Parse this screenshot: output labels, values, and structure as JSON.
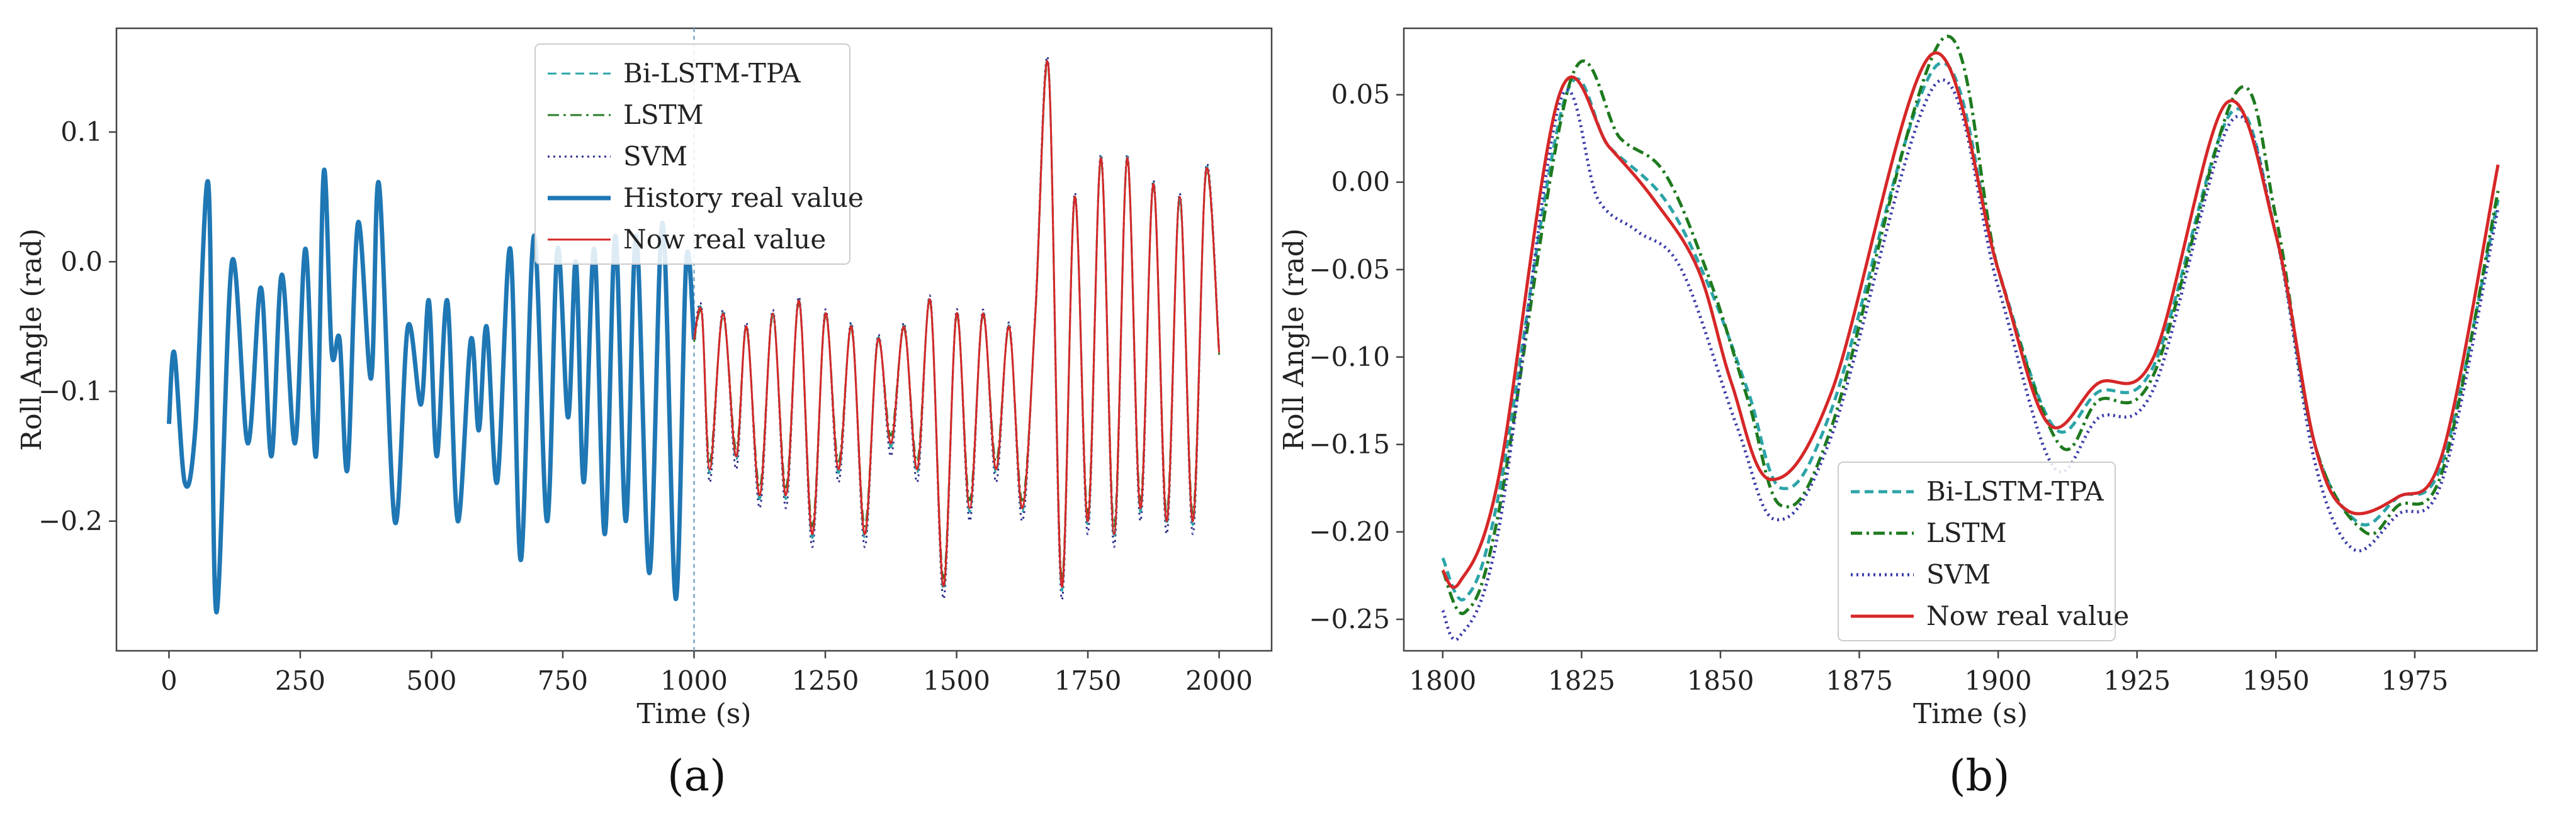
{
  "figure_labels": {
    "a": "(a)",
    "b": "(b)"
  },
  "chart_data": [
    {
      "id": "a",
      "type": "line",
      "xlabel": "Time (s)",
      "ylabel": "Roll Angle (rad)",
      "xlim": [
        -100,
        2100
      ],
      "ylim": [
        -0.3,
        0.18
      ],
      "xticks": [
        0,
        250,
        500,
        750,
        1000,
        1250,
        1500,
        1750,
        2000
      ],
      "yticks": [
        0.1,
        0.0,
        -0.1,
        -0.2
      ],
      "ytick_labels": [
        "0.1",
        "0.0",
        "−0.1",
        "−0.2"
      ],
      "vertical_line_x": 1000,
      "legend": {
        "position": "top-center",
        "entries": [
          "Bi-LSTM-TPA",
          "LSTM",
          "SVM",
          "History real value",
          "Now real value"
        ]
      },
      "grid": false,
      "series": [
        {
          "name": "History real value",
          "color": "#1f77b4",
          "style": "solid",
          "width": 7,
          "points": [
            [
              0,
              -0.125
            ],
            [
              10,
              -0.07
            ],
            [
              30,
              -0.17
            ],
            [
              50,
              -0.13
            ],
            [
              75,
              0.06
            ],
            [
              90,
              -0.27
            ],
            [
              120,
              0.0
            ],
            [
              150,
              -0.14
            ],
            [
              175,
              -0.02
            ],
            [
              195,
              -0.15
            ],
            [
              215,
              -0.01
            ],
            [
              240,
              -0.14
            ],
            [
              260,
              0.01
            ],
            [
              280,
              -0.15
            ],
            [
              295,
              0.07
            ],
            [
              310,
              -0.07
            ],
            [
              325,
              -0.06
            ],
            [
              340,
              -0.16
            ],
            [
              360,
              0.03
            ],
            [
              385,
              -0.09
            ],
            [
              400,
              0.06
            ],
            [
              430,
              -0.2
            ],
            [
              455,
              -0.05
            ],
            [
              480,
              -0.11
            ],
            [
              495,
              -0.03
            ],
            [
              510,
              -0.15
            ],
            [
              530,
              -0.03
            ],
            [
              550,
              -0.2
            ],
            [
              575,
              -0.06
            ],
            [
              590,
              -0.13
            ],
            [
              605,
              -0.05
            ],
            [
              625,
              -0.17
            ],
            [
              650,
              0.01
            ],
            [
              670,
              -0.23
            ],
            [
              695,
              0.02
            ],
            [
              720,
              -0.2
            ],
            [
              740,
              0.01
            ],
            [
              760,
              -0.12
            ],
            [
              775,
              0.0
            ],
            [
              790,
              -0.17
            ],
            [
              810,
              0.01
            ],
            [
              830,
              -0.21
            ],
            [
              850,
              0.02
            ],
            [
              870,
              -0.2
            ],
            [
              890,
              0.02
            ],
            [
              915,
              -0.24
            ],
            [
              940,
              0.03
            ],
            [
              965,
              -0.26
            ],
            [
              985,
              0.0
            ],
            [
              1000,
              -0.06
            ]
          ]
        },
        {
          "name": "Now real value",
          "color": "#d62728",
          "style": "solid",
          "width": 3,
          "points": [
            [
              1000,
              -0.06
            ],
            [
              1015,
              -0.04
            ],
            [
              1030,
              -0.16
            ],
            [
              1055,
              -0.04
            ],
            [
              1080,
              -0.15
            ],
            [
              1100,
              -0.05
            ],
            [
              1125,
              -0.18
            ],
            [
              1150,
              -0.04
            ],
            [
              1175,
              -0.18
            ],
            [
              1200,
              -0.03
            ],
            [
              1225,
              -0.21
            ],
            [
              1250,
              -0.04
            ],
            [
              1275,
              -0.16
            ],
            [
              1300,
              -0.05
            ],
            [
              1325,
              -0.21
            ],
            [
              1350,
              -0.06
            ],
            [
              1375,
              -0.14
            ],
            [
              1400,
              -0.05
            ],
            [
              1425,
              -0.16
            ],
            [
              1450,
              -0.03
            ],
            [
              1475,
              -0.25
            ],
            [
              1500,
              -0.04
            ],
            [
              1525,
              -0.19
            ],
            [
              1550,
              -0.04
            ],
            [
              1575,
              -0.16
            ],
            [
              1600,
              -0.05
            ],
            [
              1625,
              -0.19
            ],
            [
              1650,
              -0.04
            ],
            [
              1675,
              0.15
            ],
            [
              1700,
              -0.25
            ],
            [
              1725,
              0.05
            ],
            [
              1750,
              -0.2
            ],
            [
              1775,
              0.08
            ],
            [
              1800,
              -0.21
            ],
            [
              1825,
              0.08
            ],
            [
              1850,
              -0.19
            ],
            [
              1875,
              0.06
            ],
            [
              1900,
              -0.2
            ],
            [
              1925,
              0.05
            ],
            [
              1950,
              -0.2
            ],
            [
              1975,
              0.07
            ],
            [
              2000,
              -0.07
            ]
          ]
        },
        {
          "name": "Bi-LSTM-TPA",
          "color": "#2ca4a8",
          "style": "dashed",
          "width": 3,
          "offset": -0.003
        },
        {
          "name": "LSTM",
          "color": "#2a7d2a",
          "style": "dashdot",
          "width": 3,
          "offset": 0.006
        },
        {
          "name": "SVM",
          "color": "#2b2d8a",
          "style": "dotted",
          "width": 3,
          "offset": -0.01
        }
      ]
    },
    {
      "id": "b",
      "type": "line",
      "xlabel": "Time (s)",
      "ylabel": "Roll Angle (rad)",
      "xlim": [
        1793,
        1997
      ],
      "ylim": [
        -0.268,
        0.088
      ],
      "xticks": [
        1800,
        1825,
        1850,
        1875,
        1900,
        1925,
        1950,
        1975
      ],
      "yticks": [
        0.05,
        0.0,
        -0.05,
        -0.1,
        -0.15,
        -0.2,
        -0.25
      ],
      "ytick_labels": [
        "0.05",
        "0.00",
        "−0.05",
        "−0.10",
        "−0.15",
        "−0.20",
        "−0.25"
      ],
      "legend": {
        "position": "lower-center",
        "entries": [
          "Bi-LSTM-TPA",
          "LSTM",
          "SVM",
          "Now real value"
        ]
      },
      "grid": false,
      "series": [
        {
          "name": "Bi-LSTM-TPA",
          "color": "#2ca4a8",
          "style": "dashed",
          "width": 5,
          "points": [
            [
              1800,
              -0.215
            ],
            [
              1804,
              -0.238
            ],
            [
              1810,
              -0.18
            ],
            [
              1822,
              0.048
            ],
            [
              1830,
              0.02
            ],
            [
              1840,
              -0.01
            ],
            [
              1848,
              -0.06
            ],
            [
              1855,
              -0.12
            ],
            [
              1861,
              -0.175
            ],
            [
              1870,
              -0.13
            ],
            [
              1889,
              0.067
            ],
            [
              1900,
              -0.05
            ],
            [
              1910,
              -0.14
            ],
            [
              1918,
              -0.12
            ],
            [
              1928,
              -0.105
            ],
            [
              1942,
              0.04
            ],
            [
              1950,
              -0.03
            ],
            [
              1957,
              -0.15
            ],
            [
              1965,
              -0.195
            ],
            [
              1972,
              -0.18
            ],
            [
              1980,
              -0.16
            ],
            [
              1990,
              -0.01
            ]
          ]
        },
        {
          "name": "LSTM",
          "color": "#1e7a1e",
          "style": "dashdot",
          "width": 5,
          "points": [
            [
              1800,
              -0.222
            ],
            [
              1804,
              -0.246
            ],
            [
              1810,
              -0.19
            ],
            [
              1823,
              0.058
            ],
            [
              1832,
              0.025
            ],
            [
              1840,
              0.005
            ],
            [
              1848,
              -0.055
            ],
            [
              1855,
              -0.125
            ],
            [
              1861,
              -0.185
            ],
            [
              1870,
              -0.14
            ],
            [
              1890,
              0.082
            ],
            [
              1900,
              -0.05
            ],
            [
              1911,
              -0.15
            ],
            [
              1918,
              -0.125
            ],
            [
              1928,
              -0.11
            ],
            [
              1943,
              0.052
            ],
            [
              1950,
              -0.02
            ],
            [
              1957,
              -0.15
            ],
            [
              1966,
              -0.2
            ],
            [
              1972,
              -0.185
            ],
            [
              1980,
              -0.165
            ],
            [
              1990,
              -0.005
            ]
          ]
        },
        {
          "name": "SVM",
          "color": "#3b3baa",
          "style": "dotted",
          "width": 5,
          "points": [
            [
              1800,
              -0.245
            ],
            [
              1803,
              -0.26
            ],
            [
              1810,
              -0.2
            ],
            [
              1821,
              0.045
            ],
            [
              1828,
              -0.01
            ],
            [
              1835,
              -0.028
            ],
            [
              1843,
              -0.05
            ],
            [
              1853,
              -0.14
            ],
            [
              1860,
              -0.193
            ],
            [
              1870,
              -0.145
            ],
            [
              1889,
              0.057
            ],
            [
              1900,
              -0.06
            ],
            [
              1910,
              -0.163
            ],
            [
              1918,
              -0.135
            ],
            [
              1928,
              -0.118
            ],
            [
              1942,
              0.035
            ],
            [
              1950,
              -0.03
            ],
            [
              1957,
              -0.16
            ],
            [
              1964,
              -0.21
            ],
            [
              1972,
              -0.19
            ],
            [
              1980,
              -0.17
            ],
            [
              1990,
              -0.015
            ]
          ]
        },
        {
          "name": "Now real value",
          "color": "#d62728",
          "style": "solid",
          "width": 5,
          "points": [
            [
              1800,
              -0.222
            ],
            [
              1803,
              -0.229
            ],
            [
              1810,
              -0.17
            ],
            [
              1821,
              0.05
            ],
            [
              1830,
              0.02
            ],
            [
              1838,
              -0.01
            ],
            [
              1846,
              -0.05
            ],
            [
              1852,
              -0.115
            ],
            [
              1859,
              -0.17
            ],
            [
              1870,
              -0.12
            ],
            [
              1888,
              0.073
            ],
            [
              1900,
              -0.05
            ],
            [
              1909,
              -0.138
            ],
            [
              1918,
              -0.115
            ],
            [
              1928,
              -0.1
            ],
            [
              1941,
              0.045
            ],
            [
              1950,
              -0.03
            ],
            [
              1957,
              -0.15
            ],
            [
              1963,
              -0.188
            ],
            [
              1972,
              -0.18
            ],
            [
              1980,
              -0.155
            ],
            [
              1990,
              0.01
            ]
          ]
        }
      ]
    }
  ]
}
